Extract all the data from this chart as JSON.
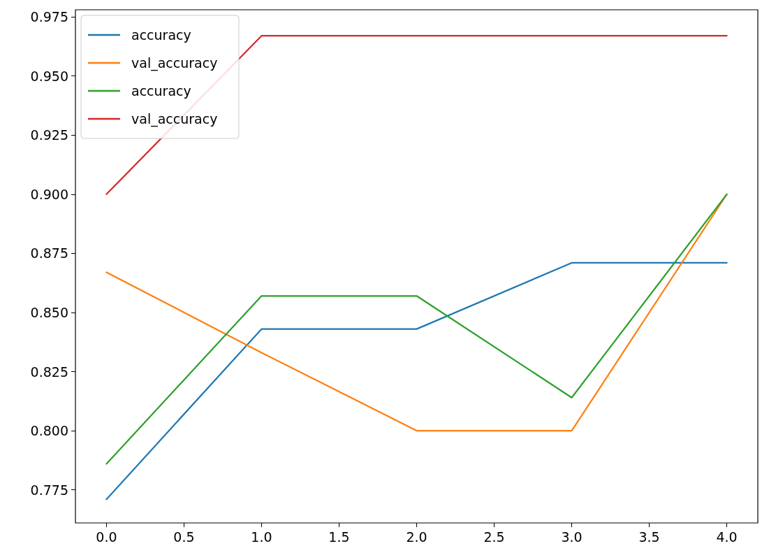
{
  "chart_data": {
    "type": "line",
    "x": [
      0,
      1,
      2,
      3,
      4
    ],
    "series": [
      {
        "name": "accuracy",
        "color": "#1f77b4",
        "values": [
          0.771,
          0.843,
          0.843,
          0.871,
          0.871
        ]
      },
      {
        "name": "val_accuracy",
        "color": "#ff7f0e",
        "values": [
          0.867,
          0.833,
          0.8,
          0.8,
          0.9
        ]
      },
      {
        "name": "accuracy",
        "color": "#2ca02c",
        "values": [
          0.786,
          0.857,
          0.857,
          0.814,
          0.9
        ]
      },
      {
        "name": "val_accuracy",
        "color": "#d62728",
        "values": [
          0.9,
          0.967,
          0.967,
          0.967,
          0.967
        ]
      }
    ],
    "xlim": [
      -0.2,
      4.2
    ],
    "xticks": [
      {
        "value": 0,
        "label": "0.0"
      },
      {
        "value": 0.5,
        "label": "0.5"
      },
      {
        "value": 1,
        "label": "1.0"
      },
      {
        "value": 1.5,
        "label": "1.5"
      },
      {
        "value": 2,
        "label": "2.0"
      },
      {
        "value": 2.5,
        "label": "2.5"
      },
      {
        "value": 3,
        "label": "3.0"
      },
      {
        "value": 3.5,
        "label": "3.5"
      },
      {
        "value": 4,
        "label": "4.0"
      }
    ],
    "ylim": [
      0.761,
      0.978
    ],
    "yticks": [
      0.775,
      {
        "value": 0.8,
        "label": "0.800"
      },
      0.825,
      {
        "value": 0.85,
        "label": "0.850"
      },
      0.875,
      {
        "value": 0.9,
        "label": "0.900"
      },
      0.925,
      {
        "value": 0.95,
        "label": "0.950"
      },
      0.975
    ],
    "grid": false,
    "legend": "top left",
    "marker": "none",
    "line_style": "solid"
  }
}
